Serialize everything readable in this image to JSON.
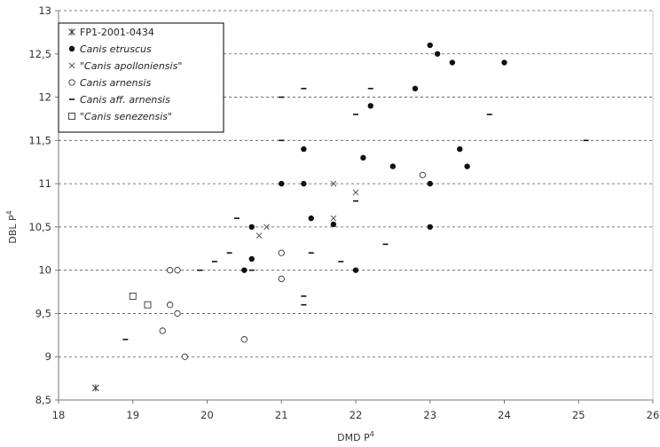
{
  "chart_data": {
    "type": "scatter",
    "title": "",
    "xlabel": "DMD P",
    "xlabel_sup": "4",
    "ylabel": "DBL P",
    "ylabel_sup": "4",
    "xlim": [
      18,
      26
    ],
    "ylim": [
      8.5,
      13
    ],
    "x_ticks": [
      "18",
      "19",
      "20",
      "21",
      "22",
      "23",
      "24",
      "25",
      "26"
    ],
    "y_ticks": [
      "8,5",
      "9",
      "9,5",
      "10",
      "10,5",
      "11",
      "11,5",
      "12",
      "12,5",
      "13"
    ],
    "grid": "horizontal-dashed",
    "legend_position": "top-left",
    "series": [
      {
        "name": "FP1-2001-0434",
        "italic": false,
        "marker": "asterisk",
        "points": [
          [
            18.5,
            8.64
          ]
        ]
      },
      {
        "name": "Canis etruscus",
        "italic": true,
        "marker": "filled-circle",
        "points": [
          [
            20.5,
            10.0
          ],
          [
            20.6,
            10.5
          ],
          [
            20.6,
            10.13
          ],
          [
            21.0,
            11.0
          ],
          [
            21.3,
            11.4
          ],
          [
            21.3,
            11.0
          ],
          [
            21.4,
            10.6
          ],
          [
            21.7,
            10.53
          ],
          [
            22.0,
            10.0
          ],
          [
            22.1,
            11.3
          ],
          [
            22.2,
            11.9
          ],
          [
            22.5,
            11.2
          ],
          [
            22.8,
            12.1
          ],
          [
            23.0,
            12.6
          ],
          [
            23.1,
            12.5
          ],
          [
            23.3,
            12.4
          ],
          [
            23.0,
            11.0
          ],
          [
            23.0,
            10.5
          ],
          [
            23.4,
            11.4
          ],
          [
            23.5,
            11.2
          ],
          [
            24.0,
            12.4
          ]
        ]
      },
      {
        "name": "\"Canis apolloniensis\"",
        "italic": true,
        "marker": "cross",
        "points": [
          [
            20.7,
            10.4
          ],
          [
            20.8,
            10.5
          ],
          [
            21.7,
            10.6
          ],
          [
            21.7,
            11.0
          ],
          [
            22.0,
            10.9
          ]
        ]
      },
      {
        "name": "Canis arnensis",
        "italic": true,
        "marker": "open-circle",
        "points": [
          [
            19.4,
            9.3
          ],
          [
            19.5,
            10.0
          ],
          [
            19.5,
            9.6
          ],
          [
            19.6,
            10.0
          ],
          [
            19.6,
            9.5
          ],
          [
            19.7,
            9.0
          ],
          [
            20.5,
            9.2
          ],
          [
            21.0,
            10.2
          ],
          [
            21.0,
            9.9
          ],
          [
            22.9,
            11.1
          ]
        ]
      },
      {
        "name": "Canis aff. arnensis",
        "italic": true,
        "marker": "dash",
        "points": [
          [
            18.9,
            9.2
          ],
          [
            19.9,
            10.0
          ],
          [
            20.1,
            10.1
          ],
          [
            20.3,
            10.2
          ],
          [
            20.4,
            10.6
          ],
          [
            20.6,
            10.0
          ],
          [
            21.0,
            12.0
          ],
          [
            21.0,
            11.5
          ],
          [
            21.3,
            12.1
          ],
          [
            21.3,
            9.7
          ],
          [
            21.3,
            9.6
          ],
          [
            21.4,
            10.2
          ],
          [
            21.8,
            10.1
          ],
          [
            22.0,
            11.8
          ],
          [
            22.0,
            10.8
          ],
          [
            22.2,
            12.1
          ],
          [
            22.4,
            10.3
          ],
          [
            23.8,
            11.8
          ],
          [
            25.1,
            11.5
          ]
        ]
      },
      {
        "name": "\"Canis senezensis\"",
        "italic": true,
        "marker": "open-square",
        "points": [
          [
            19.0,
            9.7
          ],
          [
            19.2,
            9.6
          ]
        ]
      }
    ]
  }
}
